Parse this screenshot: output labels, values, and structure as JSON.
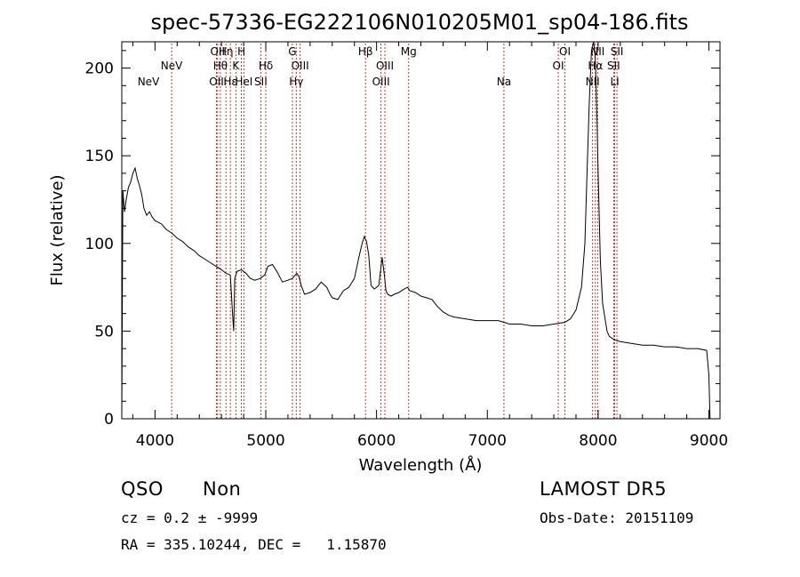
{
  "chart_data": {
    "type": "line",
    "title": "spec-57336-EG222106N010205M01_sp04-186.fits",
    "xlabel": "Wavelength (Å)",
    "ylabel": "Flux (relative)",
    "xlim": [
      3700,
      9100
    ],
    "ylim": [
      0,
      215
    ],
    "xticks": [
      4000,
      5000,
      6000,
      7000,
      8000,
      9000
    ],
    "yticks": [
      0,
      50,
      100,
      150,
      200
    ],
    "grid": false,
    "series": [
      {
        "x": [
          3700,
          3710,
          3725,
          3740,
          3760,
          3780,
          3800,
          3820,
          3840,
          3860,
          3880,
          3900,
          3925,
          3950,
          3975,
          4000,
          4030,
          4060,
          4100,
          4150,
          4200,
          4250,
          4300,
          4350,
          4400,
          4450,
          4500,
          4550,
          4600,
          4640,
          4680,
          4700,
          4710,
          4720,
          4740,
          4780,
          4820,
          4860,
          4900,
          4950,
          4990,
          5020,
          5060,
          5100,
          5150,
          5200,
          5240,
          5280,
          5300,
          5320,
          5350,
          5400,
          5450,
          5500,
          5550,
          5580,
          5600,
          5650,
          5700,
          5750,
          5800,
          5840,
          5870,
          5890,
          5910,
          5930,
          5950,
          5980,
          6020,
          6050,
          6070,
          6085,
          6100,
          6130,
          6160,
          6200,
          6250,
          6280,
          6300,
          6350,
          6400,
          6450,
          6500,
          6550,
          6600,
          6650,
          6700,
          6800,
          6900,
          7000,
          7100,
          7150,
          7200,
          7300,
          7400,
          7500,
          7600,
          7700,
          7750,
          7800,
          7850,
          7880,
          7900,
          7920,
          7940,
          7960,
          7975,
          7990,
          8000,
          8020,
          8040,
          8060,
          8080,
          8100,
          8150,
          8200,
          8300,
          8400,
          8500,
          8600,
          8700,
          8800,
          8900,
          8980,
          9000,
          9010
        ],
        "y": [
          0,
          130,
          118,
          125,
          132,
          135,
          140,
          143,
          137,
          133,
          128,
          120,
          116,
          118,
          115,
          113,
          112,
          111,
          108,
          106,
          103,
          101,
          98,
          96,
          93,
          91,
          89,
          87,
          85,
          83,
          82,
          60,
          50,
          80,
          84,
          85,
          83,
          80,
          79,
          80,
          82,
          87,
          88,
          84,
          78,
          79,
          80,
          83,
          81,
          76,
          71,
          72,
          74,
          78,
          75,
          71,
          69,
          68,
          73,
          75,
          80,
          92,
          100,
          104,
          101,
          93,
          76,
          74,
          76,
          92,
          82,
          73,
          71,
          70,
          71,
          72,
          74,
          75,
          73,
          72,
          70,
          69,
          68,
          64,
          61,
          59,
          58,
          57,
          56,
          56,
          56,
          55,
          54,
          54,
          53,
          53,
          54,
          55,
          57,
          62,
          75,
          100,
          140,
          180,
          210,
          215,
          205,
          170,
          140,
          90,
          66,
          58,
          50,
          47,
          45,
          44,
          43,
          42,
          42,
          41,
          41,
          40,
          40,
          39,
          25,
          0
        ]
      }
    ],
    "line_labels": [
      {
        "label": "NeV",
        "x": 3426,
        "row": 2
      },
      {
        "label": "NeV",
        "x": 4150,
        "row": 1
      },
      {
        "label": "OII",
        "x": 4555,
        "row": 2
      },
      {
        "label": "OII",
        "x": 4565,
        "row": 0
      },
      {
        "label": "Hθ",
        "x": 4590,
        "row": 1
      },
      {
        "label": "Hη",
        "x": 4640,
        "row": 0
      },
      {
        "label": "Hε",
        "x": 4680,
        "row": 2
      },
      {
        "label": "K",
        "x": 4730,
        "row": 1
      },
      {
        "label": "H",
        "x": 4780,
        "row": 0
      },
      {
        "label": "HeI",
        "x": 4802,
        "row": 2
      },
      {
        "label": "SII",
        "x": 4955,
        "row": 2
      },
      {
        "label": "Hδ",
        "x": 5000,
        "row": 1
      },
      {
        "label": "G",
        "x": 5240,
        "row": 0
      },
      {
        "label": "Hγ",
        "x": 5275,
        "row": 2
      },
      {
        "label": "OIII",
        "x": 5310,
        "row": 1
      },
      {
        "label": "Hβ",
        "x": 5900,
        "row": 0
      },
      {
        "label": "OIII",
        "x": 6040,
        "row": 2
      },
      {
        "label": "OIII",
        "x": 6075,
        "row": 1
      },
      {
        "label": "Mg",
        "x": 6290,
        "row": 0
      },
      {
        "label": "Na",
        "x": 7150,
        "row": 2
      },
      {
        "label": "OI",
        "x": 7640,
        "row": 1
      },
      {
        "label": "OI",
        "x": 7700,
        "row": 0
      },
      {
        "label": "NII",
        "x": 7950,
        "row": 2
      },
      {
        "label": "Hα",
        "x": 7975,
        "row": 1
      },
      {
        "label": "NII",
        "x": 7995,
        "row": 0
      },
      {
        "label": "SII",
        "x": 8140,
        "row": 1
      },
      {
        "label": "LI",
        "x": 8150,
        "row": 2
      },
      {
        "label": "SII",
        "x": 8170,
        "row": 0
      }
    ],
    "line_marker_color": "#cc0000"
  },
  "info": {
    "class": "QSO",
    "subclass": "Non",
    "survey": "LAMOST DR5",
    "cz": "cz = 0.2 ± -9999",
    "obs_date": "Obs-Date: 20151109",
    "coords": "RA = 335.10244, DEC =   1.15870"
  }
}
